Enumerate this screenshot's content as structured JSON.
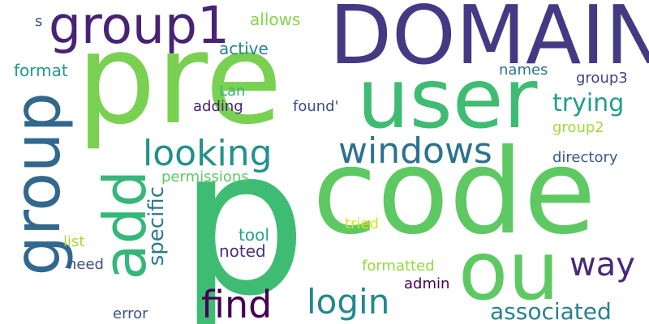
{
  "words": [
    {
      "text": "DOMAIN",
      "color": "#443983"
    },
    {
      "text": "pre",
      "color": "#7ad151"
    },
    {
      "text": "user",
      "color": "#3fbc73"
    },
    {
      "text": "code",
      "color": "#5ec962"
    },
    {
      "text": "p",
      "color": "#3fbc73"
    },
    {
      "text": "ou",
      "color": "#5ec962"
    },
    {
      "text": "group1",
      "color": "#482374"
    },
    {
      "text": "group",
      "color": "#31688e"
    },
    {
      "text": "add",
      "color": "#35b779"
    },
    {
      "text": "windows",
      "color": "#2c728e"
    },
    {
      "text": "looking",
      "color": "#21918c"
    },
    {
      "text": "find",
      "color": "#440154"
    },
    {
      "text": "login",
      "color": "#23888e"
    },
    {
      "text": "way",
      "color": "#482878"
    },
    {
      "text": "associated",
      "color": "#26828e"
    },
    {
      "text": "trying",
      "color": "#1f9e89"
    },
    {
      "text": "specific",
      "color": "#2a788e"
    },
    {
      "text": "s",
      "color": "#3b528b"
    },
    {
      "text": "allows",
      "color": "#86d549"
    },
    {
      "text": "active",
      "color": "#26828e"
    },
    {
      "text": "format",
      "color": "#1f9a8a"
    },
    {
      "text": "names",
      "color": "#2c728e"
    },
    {
      "text": "group3",
      "color": "#414487"
    },
    {
      "text": "Lan",
      "color": "#35b779"
    },
    {
      "text": "adding",
      "color": "#481f70"
    },
    {
      "text": "found'",
      "color": "#3e4989"
    },
    {
      "text": "group2",
      "color": "#a0da39"
    },
    {
      "text": "directory",
      "color": "#38598c"
    },
    {
      "text": "permissions",
      "color": "#5ec962"
    },
    {
      "text": "tool",
      "color": "#22a884"
    },
    {
      "text": "tried",
      "color": "#dde318"
    },
    {
      "text": "list",
      "color": "#a5db36"
    },
    {
      "text": "noted",
      "color": "#46337e"
    },
    {
      "text": "need",
      "color": "#3b528b"
    },
    {
      "text": "formatted",
      "color": "#95d840"
    },
    {
      "text": "admin",
      "color": "#440154"
    },
    {
      "text": "error",
      "color": "#3b528b"
    }
  ]
}
